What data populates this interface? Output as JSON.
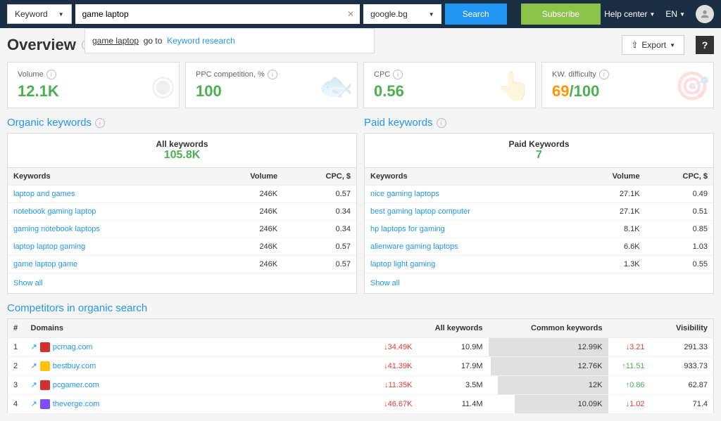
{
  "topbar": {
    "filter_label": "Keyword",
    "search_value": "game laptop",
    "domain": "google.bg",
    "search_btn": "Search",
    "subscribe_btn": "Subscribe",
    "help_center": "Help center",
    "lang": "EN"
  },
  "suggest": {
    "keyword": "game laptop",
    "goto": "go to",
    "link": "Keyword research"
  },
  "page": {
    "title": "Overview",
    "export": "Export"
  },
  "metrics": [
    {
      "label": "Volume",
      "value": "12.1K",
      "color": "#4caf50"
    },
    {
      "label": "PPC competition, %",
      "value": "100",
      "color": "#4caf50"
    },
    {
      "label": "CPC",
      "value": "0.56",
      "color": "#4caf50"
    },
    {
      "label": "KW. difficulty",
      "value": "69",
      "suffix": "/100",
      "color": "#ff9800",
      "suffix_color": "#4caf50"
    }
  ],
  "organic": {
    "title": "Organic keywords",
    "head_label": "All keywords",
    "head_value": "105.8K",
    "cols": [
      "Keywords",
      "Volume",
      "CPC, $"
    ],
    "rows": [
      {
        "k": "laptop and games",
        "v": "246K",
        "c": "0.57"
      },
      {
        "k": "notebook gaming laptop",
        "v": "246K",
        "c": "0.34"
      },
      {
        "k": "gaming notebook laptops",
        "v": "246K",
        "c": "0.34"
      },
      {
        "k": "laptop laptop gaming",
        "v": "246K",
        "c": "0.57"
      },
      {
        "k": "game laptop game",
        "v": "246K",
        "c": "0.57"
      }
    ],
    "show_all": "Show all"
  },
  "paid": {
    "title": "Paid keywords",
    "head_label": "Paid Keywords",
    "head_value": "7",
    "cols": [
      "Keywords",
      "Volume",
      "CPC, $"
    ],
    "rows": [
      {
        "k": "nice gaming laptops",
        "v": "27.1K",
        "c": "0.49"
      },
      {
        "k": "best gaming laptop computer",
        "v": "27.1K",
        "c": "0.51"
      },
      {
        "k": "hp laptops for gaming",
        "v": "8.1K",
        "c": "0.85"
      },
      {
        "k": "alienware gaming laptops",
        "v": "6.6K",
        "c": "1.03"
      },
      {
        "k": "laptop light gaming",
        "v": "1.3K",
        "c": "0.55"
      }
    ],
    "show_all": "Show all"
  },
  "competitors": {
    "title": "Competitors in organic search",
    "cols": [
      "#",
      "Domains",
      "",
      "All keywords",
      "Common keywords",
      "",
      "Visibility"
    ],
    "rows": [
      {
        "n": "1",
        "dom": "pcmag.com",
        "fav": "#d32f2f",
        "chg": "↓34.49K",
        "chg_c": "red",
        "all": "10.9M",
        "common": "12.99K",
        "bar": 100,
        "vchg": "↓3.21",
        "vchg_c": "red",
        "vis": "291.33"
      },
      {
        "n": "2",
        "dom": "bestbuy.com",
        "fav": "#ffc107",
        "chg": "↓41.39K",
        "chg_c": "red",
        "all": "17.9M",
        "common": "12.76K",
        "bar": 98,
        "vchg": "↑11.51",
        "vchg_c": "grn",
        "vis": "933.73"
      },
      {
        "n": "3",
        "dom": "pcgamer.com",
        "fav": "#d32f2f",
        "chg": "↓11.35K",
        "chg_c": "red",
        "all": "3.5M",
        "common": "12K",
        "bar": 92,
        "vchg": "↑0.86",
        "vchg_c": "grn",
        "vis": "62.87"
      },
      {
        "n": "4",
        "dom": "theverge.com",
        "fav": "#7c4dff",
        "chg": "↓46.67K",
        "chg_c": "red",
        "all": "11.4M",
        "common": "10.09K",
        "bar": 78,
        "vchg": "↓1.02",
        "vchg_c": "red",
        "vis": "71.4"
      }
    ]
  }
}
